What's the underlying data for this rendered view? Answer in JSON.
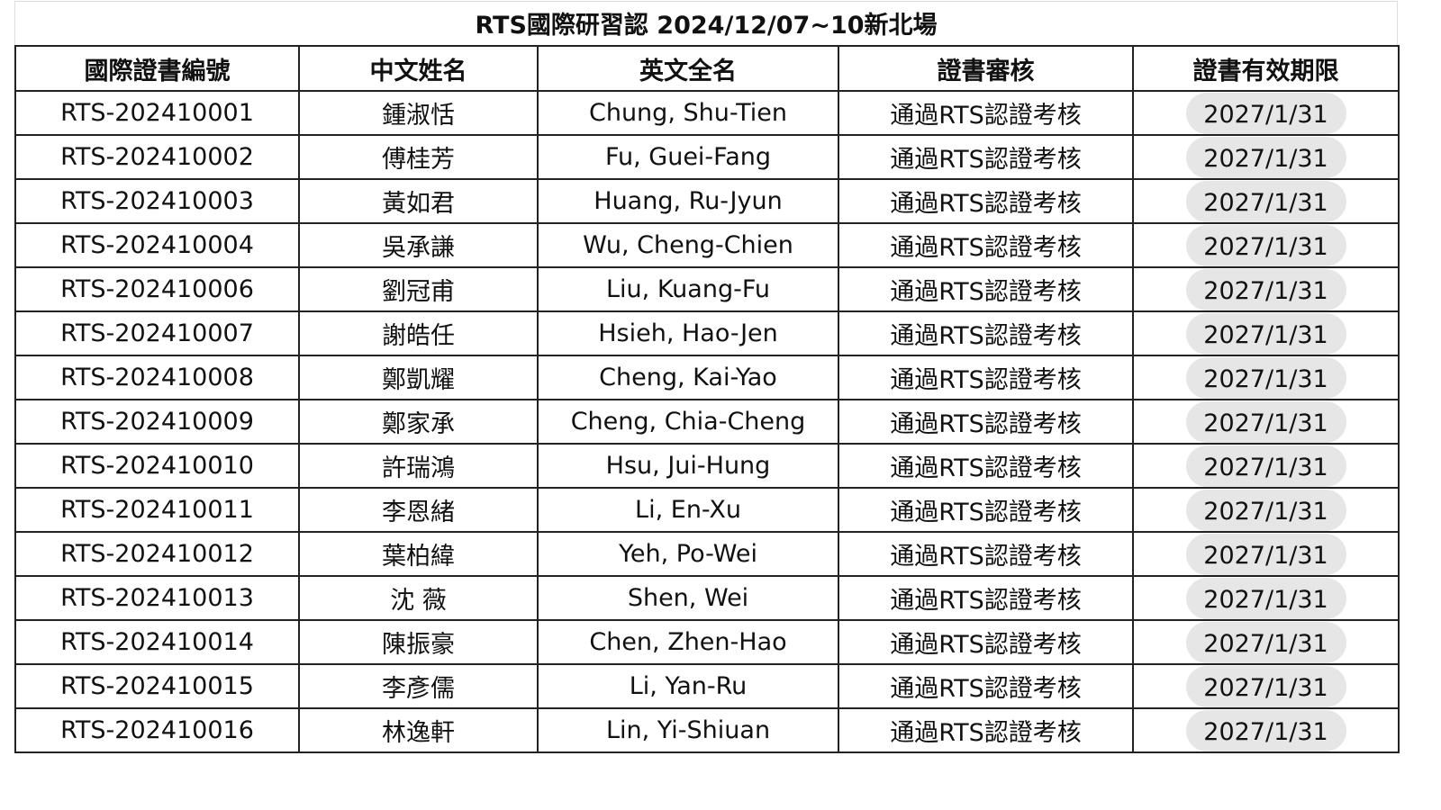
{
  "title": "RTS國際研習認 2024/12/07~10新北場",
  "headers": [
    "國際證書編號",
    "中文姓名",
    "英文全名",
    "證書審核",
    "證書有效期限"
  ],
  "colors": {
    "pill": "#e6e6e6",
    "border": "#222222"
  },
  "rows": [
    [
      "RTS-202410001",
      "鍾淑恬",
      "Chung, Shu-Tien",
      "通過RTS認證考核",
      "2027/1/31"
    ],
    [
      "RTS-202410002",
      "傅桂芳",
      "Fu, Guei-Fang",
      "通過RTS認證考核",
      "2027/1/31"
    ],
    [
      "RTS-202410003",
      "黃如君",
      "Huang, Ru-Jyun",
      "通過RTS認證考核",
      "2027/1/31"
    ],
    [
      "RTS-202410004",
      "吳承謙",
      "Wu, Cheng-Chien",
      "通過RTS認證考核",
      "2027/1/31"
    ],
    [
      "RTS-202410006",
      "劉冠甫",
      "Liu, Kuang-Fu",
      "通過RTS認證考核",
      "2027/1/31"
    ],
    [
      "RTS-202410007",
      "謝皓任",
      "Hsieh, Hao-Jen",
      "通過RTS認證考核",
      "2027/1/31"
    ],
    [
      "RTS-202410008",
      "鄭凱耀",
      "Cheng, Kai-Yao",
      "通過RTS認證考核",
      "2027/1/31"
    ],
    [
      "RTS-202410009",
      "鄭家承",
      "Cheng, Chia-Cheng",
      "通過RTS認證考核",
      "2027/1/31"
    ],
    [
      "RTS-202410010",
      "許瑞鴻",
      "Hsu, Jui-Hung",
      "通過RTS認證考核",
      "2027/1/31"
    ],
    [
      "RTS-202410011",
      "李恩緒",
      "Li, En-Xu",
      "通過RTS認證考核",
      "2027/1/31"
    ],
    [
      "RTS-202410012",
      "葉柏緯",
      "Yeh, Po-Wei",
      "通過RTS認證考核",
      "2027/1/31"
    ],
    [
      "RTS-202410013",
      "沈 薇",
      "Shen, Wei",
      "通過RTS認證考核",
      "2027/1/31"
    ],
    [
      "RTS-202410014",
      "陳振豪",
      "Chen, Zhen-Hao",
      "通過RTS認證考核",
      "2027/1/31"
    ],
    [
      "RTS-202410015",
      "李彥儒",
      "Li, Yan-Ru",
      "通過RTS認證考核",
      "2027/1/31"
    ],
    [
      "RTS-202410016",
      "林逸軒",
      "Lin, Yi-Shiuan",
      "通過RTS認證考核",
      "2027/1/31"
    ]
  ]
}
